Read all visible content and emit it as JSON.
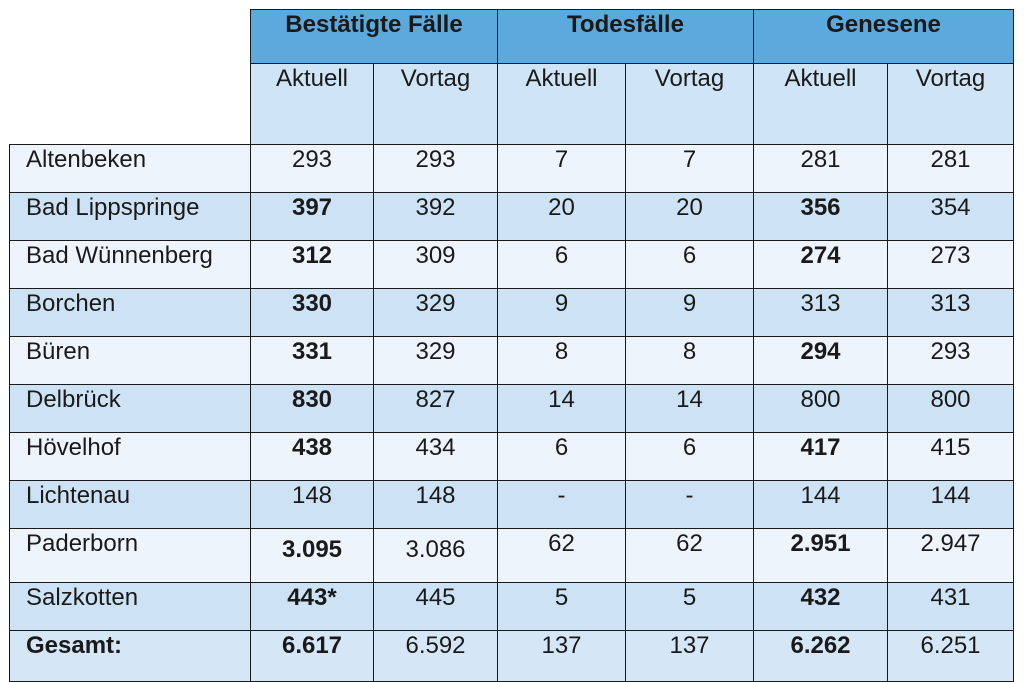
{
  "table": {
    "groups": [
      {
        "label": "Bestätigte Fälle"
      },
      {
        "label": "Todesfälle"
      },
      {
        "label": "Genesene"
      }
    ],
    "subheaders": [
      "Aktuell",
      "Vortag",
      "Aktuell",
      "Vortag",
      "Aktuell",
      "Vortag"
    ],
    "rows": [
      {
        "name": "Altenbeken",
        "values": [
          "293",
          "293",
          "7",
          "7",
          "281",
          "281"
        ],
        "bold": []
      },
      {
        "name": "Bad Lippspringe",
        "values": [
          "397",
          "392",
          "20",
          "20",
          "356",
          "354"
        ],
        "bold": [
          0,
          4
        ]
      },
      {
        "name": "Bad Wünnenberg",
        "values": [
          "312",
          "309",
          "6",
          "6",
          "274",
          "273"
        ],
        "bold": [
          0,
          4
        ]
      },
      {
        "name": "Borchen",
        "values": [
          "330",
          "329",
          "9",
          "9",
          "313",
          "313"
        ],
        "bold": [
          0
        ]
      },
      {
        "name": "Büren",
        "values": [
          "331",
          "329",
          "8",
          "8",
          "294",
          "293"
        ],
        "bold": [
          0,
          4
        ]
      },
      {
        "name": "Delbrück",
        "values": [
          "830",
          "827",
          "14",
          "14",
          "800",
          "800"
        ],
        "bold": [
          0
        ]
      },
      {
        "name": "Hövelhof",
        "values": [
          "438",
          "434",
          "6",
          "6",
          "417",
          "415"
        ],
        "bold": [
          0,
          4
        ]
      },
      {
        "name": "Lichtenau",
        "values": [
          "148",
          "148",
          "-",
          "-",
          "144",
          "144"
        ],
        "bold": []
      },
      {
        "name": "Paderborn",
        "values": [
          "3.095",
          "3.086",
          "62",
          "62",
          "2.951",
          "2.947"
        ],
        "bold": [
          0,
          4
        ]
      },
      {
        "name": "Salzkotten",
        "values": [
          "443*",
          "445",
          "5",
          "5",
          "432",
          "431"
        ],
        "bold": [
          0,
          4
        ]
      }
    ],
    "total": {
      "name": "Gesamt:",
      "values": [
        "6.617",
        "6.592",
        "137",
        "137",
        "6.262",
        "6.251"
      ],
      "bold": [
        0,
        4
      ]
    }
  },
  "colors": {
    "group_header_bg": "#5ca9dd",
    "subheader_bg": "#cfe4f5",
    "row_light_bg": "#eef4fb",
    "row_blue_bg": "#cde3f5"
  }
}
